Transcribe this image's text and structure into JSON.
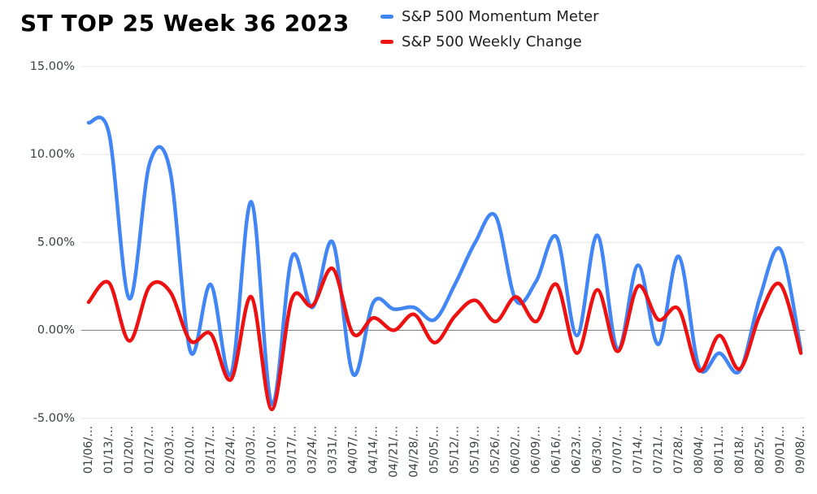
{
  "chart_data": {
    "type": "line",
    "title": "ST TOP 25 Week 36 2023",
    "legend_position": "top",
    "grid": true,
    "smooth": true,
    "ylim": [
      -5,
      15
    ],
    "y_ticks": [
      "15.00%",
      "10.00%",
      "5.00%",
      "0.00%",
      "-5.00%"
    ],
    "y_tick_values": [
      15,
      10,
      5,
      0,
      -5
    ],
    "categories": [
      "01/06/…",
      "01/13/…",
      "01/20/…",
      "01/27/…",
      "02/03/…",
      "02/10/…",
      "02/17/…",
      "02/24/…",
      "03/03/…",
      "03/10/…",
      "03/17/…",
      "03/24/…",
      "03/31/…",
      "04/07/…",
      "04/14/…",
      "04//21/…",
      "04//28/…",
      "05/05/…",
      "05/12/…",
      "05/19/…",
      "05/26/…",
      "06/02/…",
      "06/09/…",
      "06/16/…",
      "06/23/…",
      "06/30/…",
      "07/07/…",
      "07/14/…",
      "07/21/…",
      "07/28/…",
      "08/04/…",
      "08/11/…",
      "08/18/…",
      "08/25/…",
      "09/01/…",
      "09/08/…"
    ],
    "series": [
      {
        "name": "S&P 500 Momentum Meter",
        "color": "#4285F4",
        "values": [
          11.8,
          11.2,
          1.8,
          9.5,
          9.1,
          -1.2,
          2.6,
          -2.5,
          7.3,
          -4.2,
          4.2,
          1.3,
          5.0,
          -2.5,
          1.6,
          1.2,
          1.3,
          0.6,
          2.6,
          5.0,
          6.5,
          1.7,
          2.8,
          5.3,
          -0.3,
          5.4,
          -1.1,
          3.7,
          -0.8,
          4.2,
          -2.1,
          -1.3,
          -2.3,
          1.9,
          4.6,
          -1.1
        ]
      },
      {
        "name": "S&P 500 Weekly Change",
        "color": "#EE1111",
        "values": [
          1.6,
          2.7,
          -0.6,
          2.5,
          2.2,
          -0.6,
          -0.2,
          -2.8,
          1.9,
          -4.5,
          1.8,
          1.4,
          3.5,
          -0.2,
          0.7,
          0.0,
          0.9,
          -0.7,
          0.8,
          1.7,
          0.5,
          1.9,
          0.5,
          2.6,
          -1.3,
          2.3,
          -1.2,
          2.5,
          0.6,
          1.2,
          -2.3,
          -0.3,
          -2.2,
          0.9,
          2.6,
          -1.3
        ]
      }
    ],
    "colors": {
      "gridline": "#e6e6e6",
      "zero_line": "#808080",
      "axis_text": "#3c4043"
    }
  }
}
